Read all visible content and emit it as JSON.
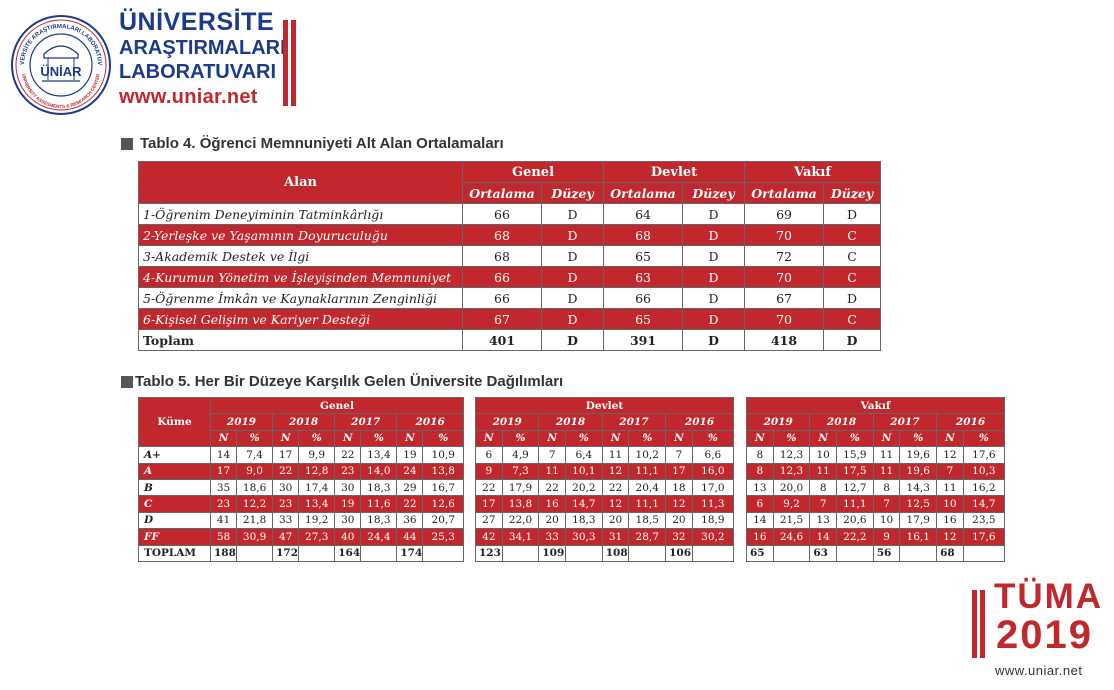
{
  "header": {
    "brand_line1": "ÜNİVERSİTE",
    "brand_line2": "ARAŞTIRMALARI",
    "brand_line3": "LABORATUVARI",
    "brand_url": "www.uniar.net",
    "seal_text_top": "ÜNİVERSİTE ARAŞTIRMALARI LABORATUVARI",
    "seal_text_bottom": "UNIVERSITY ASSESMENTS & RESEARCH CENTER",
    "seal_center": "ÜNİAR",
    "accent_color": "#c0282d",
    "brand_color": "#1c3a8a"
  },
  "table4": {
    "title": "Tablo 4. Öğrenci Memnuniyeti Alt Alan Ortalamaları",
    "col_alan": "Alan",
    "groups": [
      "Genel",
      "Devlet",
      "Vakıf"
    ],
    "sub_ortalama": "Ortalama",
    "sub_duzey": "Düzey",
    "rows": [
      {
        "name": "1-Öğrenim Deneyiminin Tatminkârlığı",
        "v": [
          "66",
          "D",
          "64",
          "D",
          "69",
          "D"
        ]
      },
      {
        "name": "2-Yerleşke ve Yaşamının Doyuruculuğu",
        "v": [
          "68",
          "D",
          "68",
          "D",
          "70",
          "C"
        ]
      },
      {
        "name": "3-Akademik Destek ve İlgi",
        "v": [
          "68",
          "D",
          "65",
          "D",
          "72",
          "C"
        ]
      },
      {
        "name": "4-Kurumun Yönetim ve İşleyişinden Memnuniyet",
        "v": [
          "66",
          "D",
          "63",
          "D",
          "70",
          "C"
        ]
      },
      {
        "name": "5-Öğrenme İmkân ve Kaynaklarının Zenginliği",
        "v": [
          "66",
          "D",
          "66",
          "D",
          "67",
          "D"
        ]
      },
      {
        "name": "6-Kişisel Gelişim ve Kariyer Desteği",
        "v": [
          "67",
          "D",
          "65",
          "D",
          "70",
          "C"
        ]
      }
    ],
    "total": {
      "name": "Toplam",
      "v": [
        "401",
        "D",
        "391",
        "D",
        "418",
        "D"
      ]
    }
  },
  "table5": {
    "title": "Tablo 5. Her Bir Düzeye Karşılık Gelen Üniversite Dağılımları",
    "col_kume": "Küme",
    "years": [
      "2019",
      "2018",
      "2017",
      "2016"
    ],
    "sub_n": "N",
    "sub_pct": "%",
    "total_label": "TOPLAM",
    "labels": [
      "A+",
      "A",
      "B",
      "C",
      "D",
      "FF"
    ],
    "blocks": [
      {
        "name": "Genel",
        "rows": [
          [
            "14",
            "7,4",
            "17",
            "9,9",
            "22",
            "13,4",
            "19",
            "10,9"
          ],
          [
            "17",
            "9,0",
            "22",
            "12,8",
            "23",
            "14,0",
            "24",
            "13,8"
          ],
          [
            "35",
            "18,6",
            "30",
            "17,4",
            "30",
            "18,3",
            "29",
            "16,7"
          ],
          [
            "23",
            "12,2",
            "23",
            "13,4",
            "19",
            "11,6",
            "22",
            "12,6"
          ],
          [
            "41",
            "21,8",
            "33",
            "19,2",
            "30",
            "18,3",
            "36",
            "20,7"
          ],
          [
            "58",
            "30,9",
            "47",
            "27,3",
            "40",
            "24,4",
            "44",
            "25,3"
          ]
        ],
        "totals": [
          "188",
          "",
          "172",
          "",
          "164",
          "",
          "174",
          ""
        ]
      },
      {
        "name": "Devlet",
        "rows": [
          [
            "6",
            "4,9",
            "7",
            "6,4",
            "11",
            "10,2",
            "7",
            "6,6"
          ],
          [
            "9",
            "7,3",
            "11",
            "10,1",
            "12",
            "11,1",
            "17",
            "16,0"
          ],
          [
            "22",
            "17,9",
            "22",
            "20,2",
            "22",
            "20,4",
            "18",
            "17,0"
          ],
          [
            "17",
            "13,8",
            "16",
            "14,7",
            "12",
            "11,1",
            "12",
            "11,3"
          ],
          [
            "27",
            "22,0",
            "20",
            "18,3",
            "20",
            "18,5",
            "20",
            "18,9"
          ],
          [
            "42",
            "34,1",
            "33",
            "30,3",
            "31",
            "28,7",
            "32",
            "30,2"
          ]
        ],
        "totals": [
          "123",
          "",
          "109",
          "",
          "108",
          "",
          "106",
          ""
        ]
      },
      {
        "name": "Vakıf",
        "rows": [
          [
            "8",
            "12,3",
            "10",
            "15,9",
            "11",
            "19,6",
            "12",
            "17,6"
          ],
          [
            "8",
            "12,3",
            "11",
            "17,5",
            "11",
            "19,6",
            "7",
            "10,3"
          ],
          [
            "13",
            "20,0",
            "8",
            "12,7",
            "8",
            "14,3",
            "11",
            "16,2"
          ],
          [
            "6",
            "9,2",
            "7",
            "11,1",
            "7",
            "12,5",
            "10",
            "14,7"
          ],
          [
            "14",
            "21,5",
            "13",
            "20,6",
            "10",
            "17,9",
            "16",
            "23,5"
          ],
          [
            "16",
            "24,6",
            "14",
            "22,2",
            "9",
            "16,1",
            "12",
            "17,6"
          ]
        ],
        "totals": [
          "65",
          "",
          "63",
          "",
          "56",
          "",
          "68",
          ""
        ]
      }
    ]
  },
  "footer": {
    "name": "TÜMA",
    "year": "2019",
    "url": "www.uniar.net"
  }
}
